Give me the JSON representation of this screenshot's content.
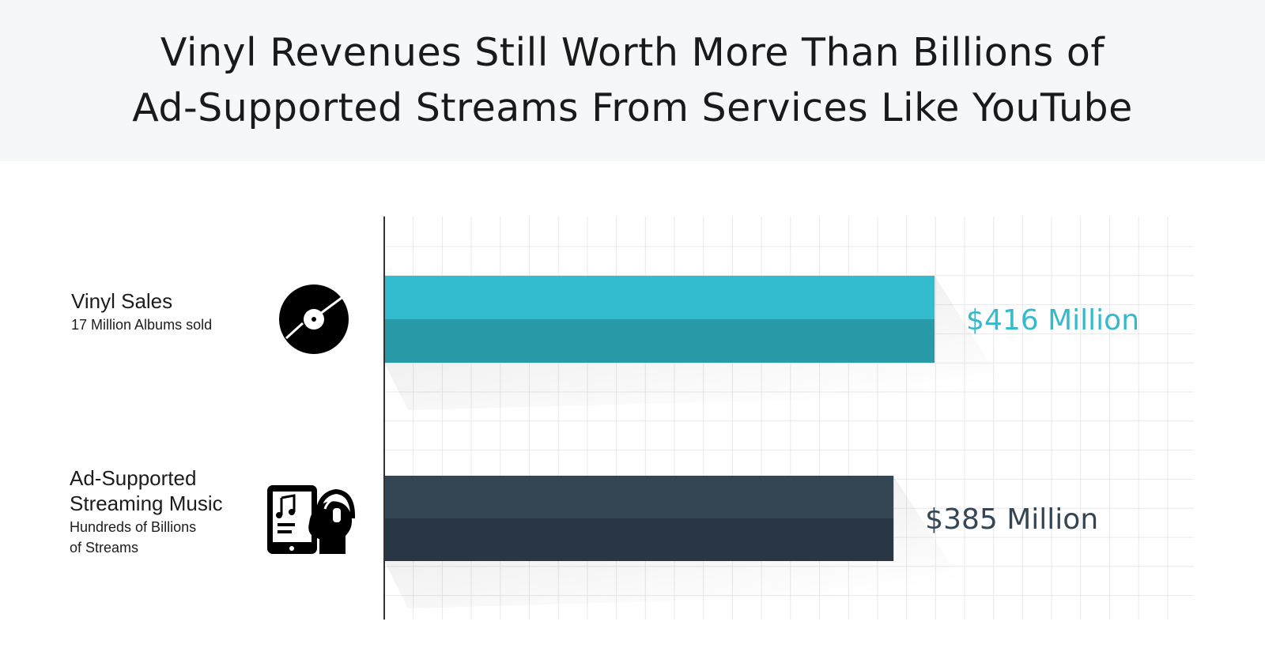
{
  "header": {
    "title_line1": "Vinyl Revenues Still Worth More Than Billions of",
    "title_line2": "Ad-Supported Streams From Services Like YouTube"
  },
  "colors": {
    "header_bg": "#f6f7f8",
    "vinyl_top": "#33bccf",
    "vinyl_bottom": "#289aa7",
    "vinyl_label": "#36b9cd",
    "stream_top": "#344554",
    "stream_bottom": "#293744",
    "stream_label": "#344554",
    "grid": "#e8e8e8",
    "axis": "#333333"
  },
  "chart_data": {
    "type": "bar",
    "orientation": "horizontal",
    "title": "Vinyl Revenues Still Worth More Than Billions of Ad-Supported Streams From Services Like YouTube",
    "unit": "Million USD",
    "xlim": [
      0,
      612
    ],
    "grid": true,
    "categories": [
      {
        "name": "Vinyl Sales",
        "subtitle_lines": [
          "17 Million Albums sold"
        ],
        "icon": "vinyl-record-icon",
        "value": 416,
        "label": "$416 Million"
      },
      {
        "name_lines": [
          "Ad-Supported",
          "Streaming Music"
        ],
        "subtitle_lines": [
          "Hundreds of Billions",
          "of Streams"
        ],
        "icon": "tablet-music-headphones-icon",
        "value": 385,
        "label": "$385 Million"
      }
    ]
  }
}
